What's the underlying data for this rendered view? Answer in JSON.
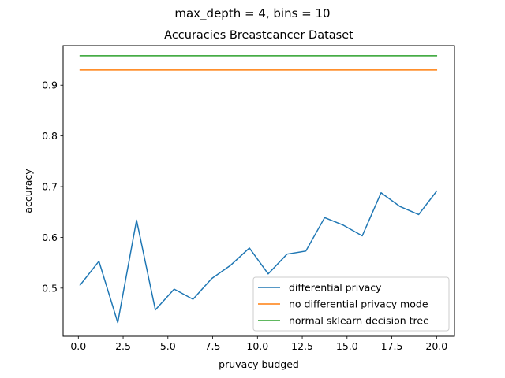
{
  "suptitle": "max_depth = 4, bins = 10",
  "chart_data": {
    "type": "line",
    "title": "Accuracies Breastcancer Dataset",
    "xlabel": "pruvacy budged",
    "ylabel": "accuracy",
    "xlim": [
      -0.85,
      21.0
    ],
    "ylim": [
      0.405,
      0.978
    ],
    "xticks": [
      0.0,
      2.5,
      5.0,
      7.5,
      10.0,
      12.5,
      15.0,
      17.5,
      20.0
    ],
    "xtick_labels": [
      "0.0",
      "2.5",
      "5.0",
      "7.5",
      "10.0",
      "12.5",
      "15.0",
      "17.5",
      "20.0"
    ],
    "yticks": [
      0.5,
      0.6,
      0.7,
      0.8,
      0.9
    ],
    "ytick_labels": [
      "0.5",
      "0.6",
      "0.7",
      "0.8",
      "0.9"
    ],
    "grid": false,
    "legend_position": "lower-right",
    "series": [
      {
        "name": "differential privacy",
        "color": "#1f77b4",
        "x": [
          0.1,
          1.15,
          2.2,
          3.25,
          4.3,
          5.35,
          6.4,
          7.45,
          8.5,
          9.55,
          10.6,
          11.65,
          12.7,
          13.75,
          14.8,
          15.85,
          16.9,
          17.95,
          19.0,
          20.0
        ],
        "y": [
          0.506,
          0.553,
          0.432,
          0.634,
          0.457,
          0.498,
          0.478,
          0.519,
          0.545,
          0.579,
          0.528,
          0.567,
          0.573,
          0.639,
          0.624,
          0.603,
          0.688,
          0.661,
          0.645,
          0.691
        ]
      },
      {
        "name": "no differential privacy mode",
        "color": "#ff7f0e",
        "x": [
          0.1,
          20.0
        ],
        "y": [
          0.93,
          0.93
        ]
      },
      {
        "name": "normal sklearn decision tree",
        "color": "#2ca02c",
        "x": [
          0.1,
          20.0
        ],
        "y": [
          0.958,
          0.958
        ]
      }
    ]
  }
}
